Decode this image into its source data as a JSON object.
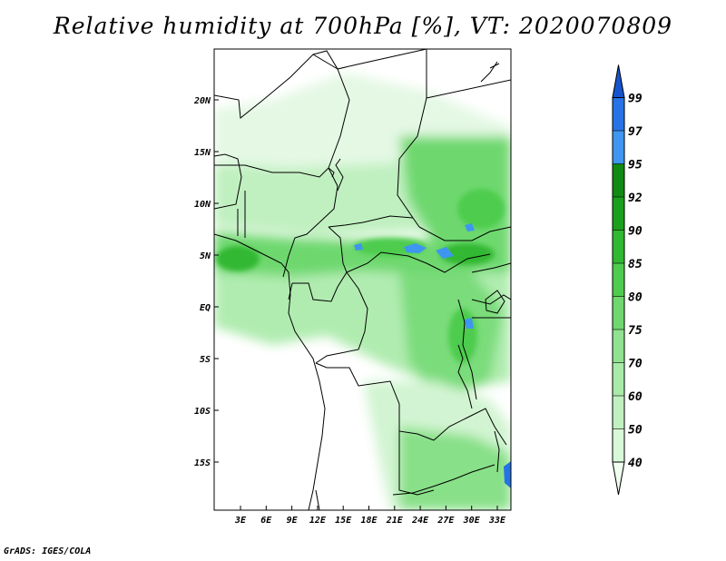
{
  "title": "Relative humidity at 700hPa [%], VT: 2020070809",
  "credit": "GrADS: IGES/COLA",
  "map": {
    "lat_ticks": [
      "20N",
      "15N",
      "10N",
      "5N",
      "EQ",
      "5S",
      "10S",
      "15S"
    ],
    "lon_ticks": [
      "3E",
      "6E",
      "9E",
      "12E",
      "15E",
      "18E",
      "21E",
      "24E",
      "27E",
      "30E",
      "33E"
    ]
  },
  "colorbar": {
    "levels": [
      "40",
      "50",
      "60",
      "70",
      "75",
      "80",
      "85",
      "90",
      "92",
      "95",
      "97",
      "99"
    ],
    "colors": [
      "#f0fff0",
      "#d8f8d8",
      "#c0f0c0",
      "#a8eaa8",
      "#90e290",
      "#6ed86e",
      "#4ecc4e",
      "#30b830",
      "#1aa01a",
      "#108a10",
      "#3e96f0",
      "#2673e6",
      "#1654cc"
    ]
  }
}
